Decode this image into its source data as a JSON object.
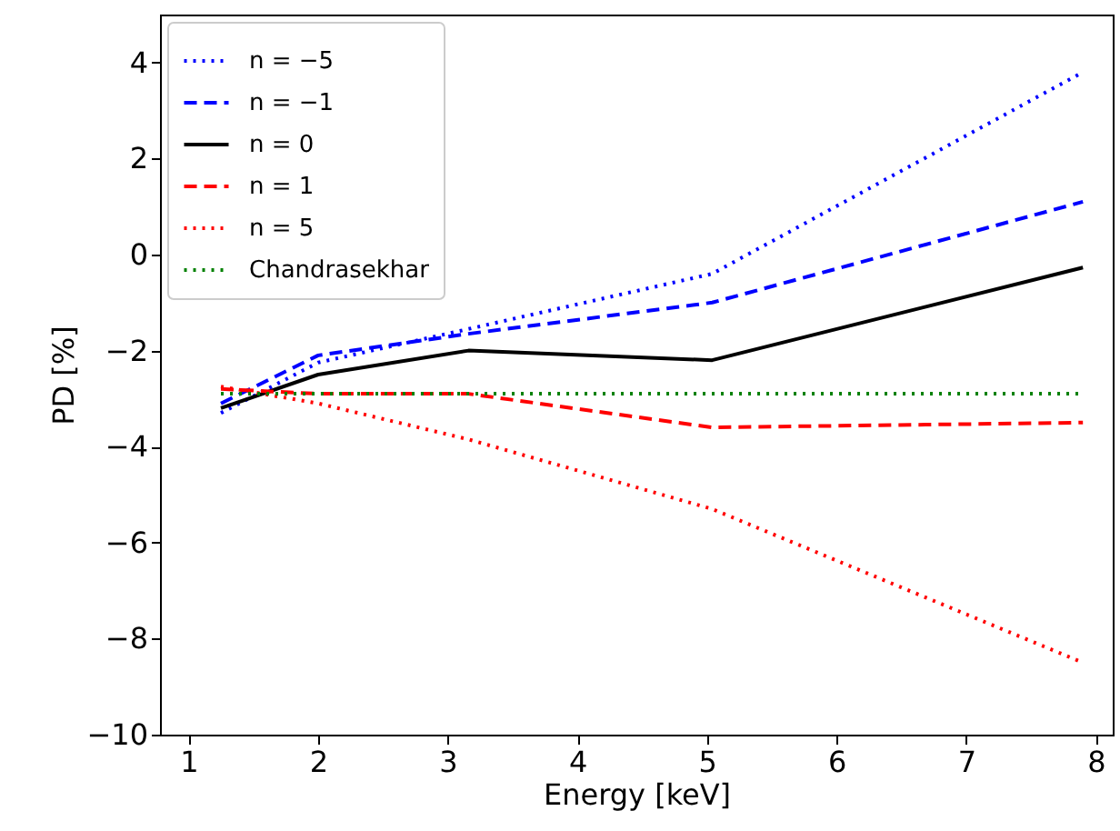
{
  "chart_data": {
    "type": "line",
    "xlabel": "Energy [keV]",
    "ylabel": "PD [%]",
    "x": [
      1.25,
      2,
      3.16,
      5.04,
      7.9
    ],
    "series": [
      {
        "name": "n = −5",
        "color": "#0000ff",
        "line_style": "dotted",
        "values": [
          -3.3,
          -2.25,
          -1.55,
          -0.4,
          3.8
        ]
      },
      {
        "name": "n = −1",
        "color": "#0000ff",
        "line_style": "dashed",
        "values": [
          -3.1,
          -2.1,
          -1.65,
          -1.0,
          1.1
        ]
      },
      {
        "name": "n = 0",
        "color": "#000000",
        "line_style": "solid",
        "values": [
          -3.2,
          -2.5,
          -2.0,
          -2.2,
          -0.27
        ]
      },
      {
        "name": "n = 1",
        "color": "#ff0000",
        "line_style": "dashed",
        "values": [
          -2.8,
          -2.9,
          -2.9,
          -3.6,
          -3.5
        ]
      },
      {
        "name": "n = 5",
        "color": "#ff0000",
        "line_style": "dotted",
        "values": [
          -2.75,
          -3.1,
          -3.85,
          -5.3,
          -8.5
        ]
      },
      {
        "name": "Chandrasekhar",
        "color": "#008000",
        "line_style": "dotted",
        "values": [
          -2.9,
          -2.9,
          -2.9,
          -2.9,
          -2.9
        ]
      }
    ],
    "xlim": [
      0.78,
      8.13
    ],
    "ylim": [
      -10,
      5
    ],
    "xticks": [
      1,
      2,
      3,
      4,
      5,
      6,
      7,
      8
    ],
    "yticks": [
      -10,
      -8,
      -6,
      -4,
      -2,
      0,
      2,
      4
    ],
    "legend": "top left",
    "grid": false,
    "marker": "none"
  }
}
